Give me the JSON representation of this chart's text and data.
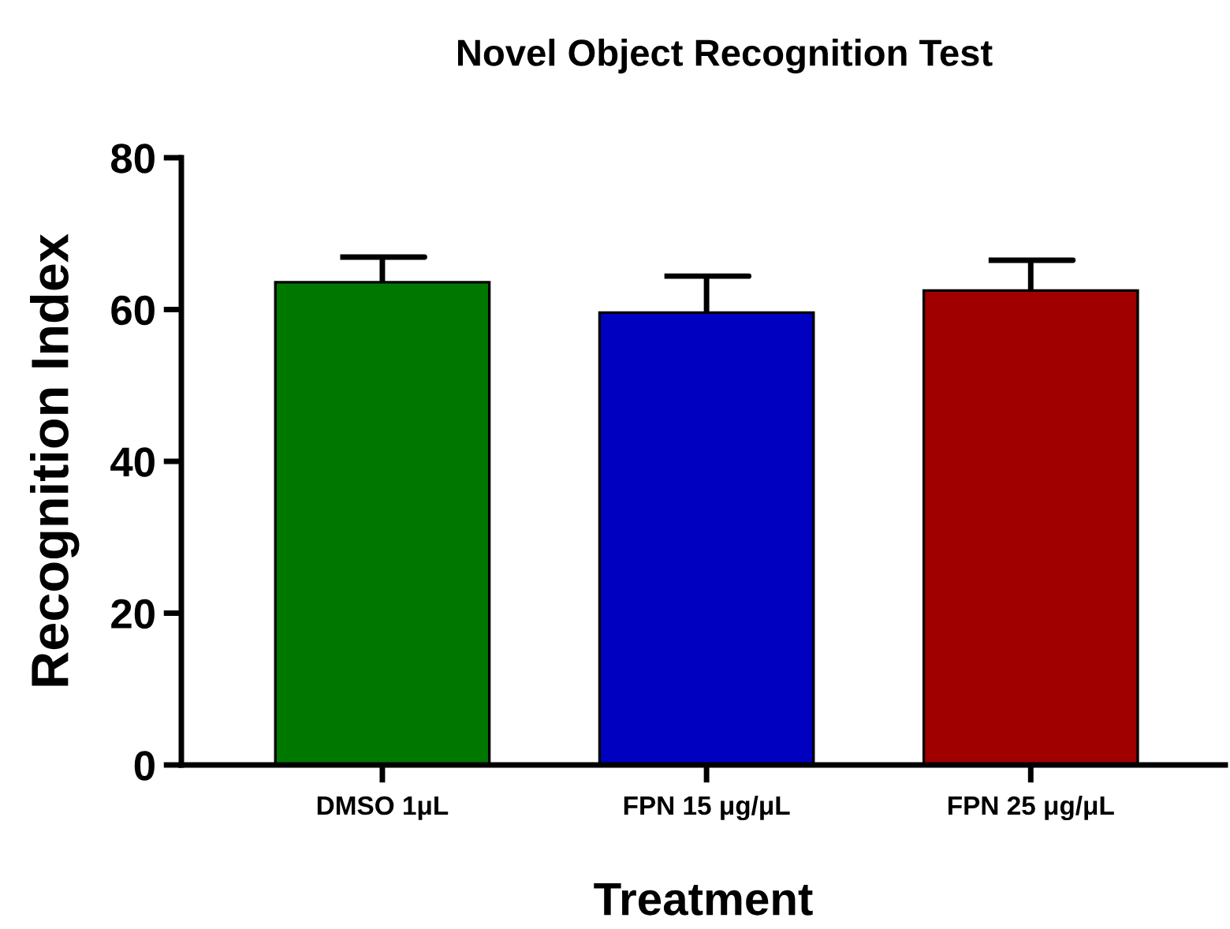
{
  "chart_data": {
    "type": "bar",
    "title": "Novel Object Recognition Test",
    "xlabel": "Treatment",
    "ylabel": "Recognition Index",
    "categories": [
      "DMSO 1μL",
      "FPN 15 μg/μL",
      "FPN 25 μg/μL"
    ],
    "values": [
      63.6,
      59.6,
      62.5
    ],
    "colors": [
      "#007800",
      "#0000c0",
      "#a00000"
    ],
    "errors": [
      3.3,
      4.8,
      4.0
    ],
    "ylim": [
      0,
      80
    ],
    "yticks": [
      0,
      20,
      40,
      60,
      80
    ],
    "grid": false,
    "legend": false
  }
}
